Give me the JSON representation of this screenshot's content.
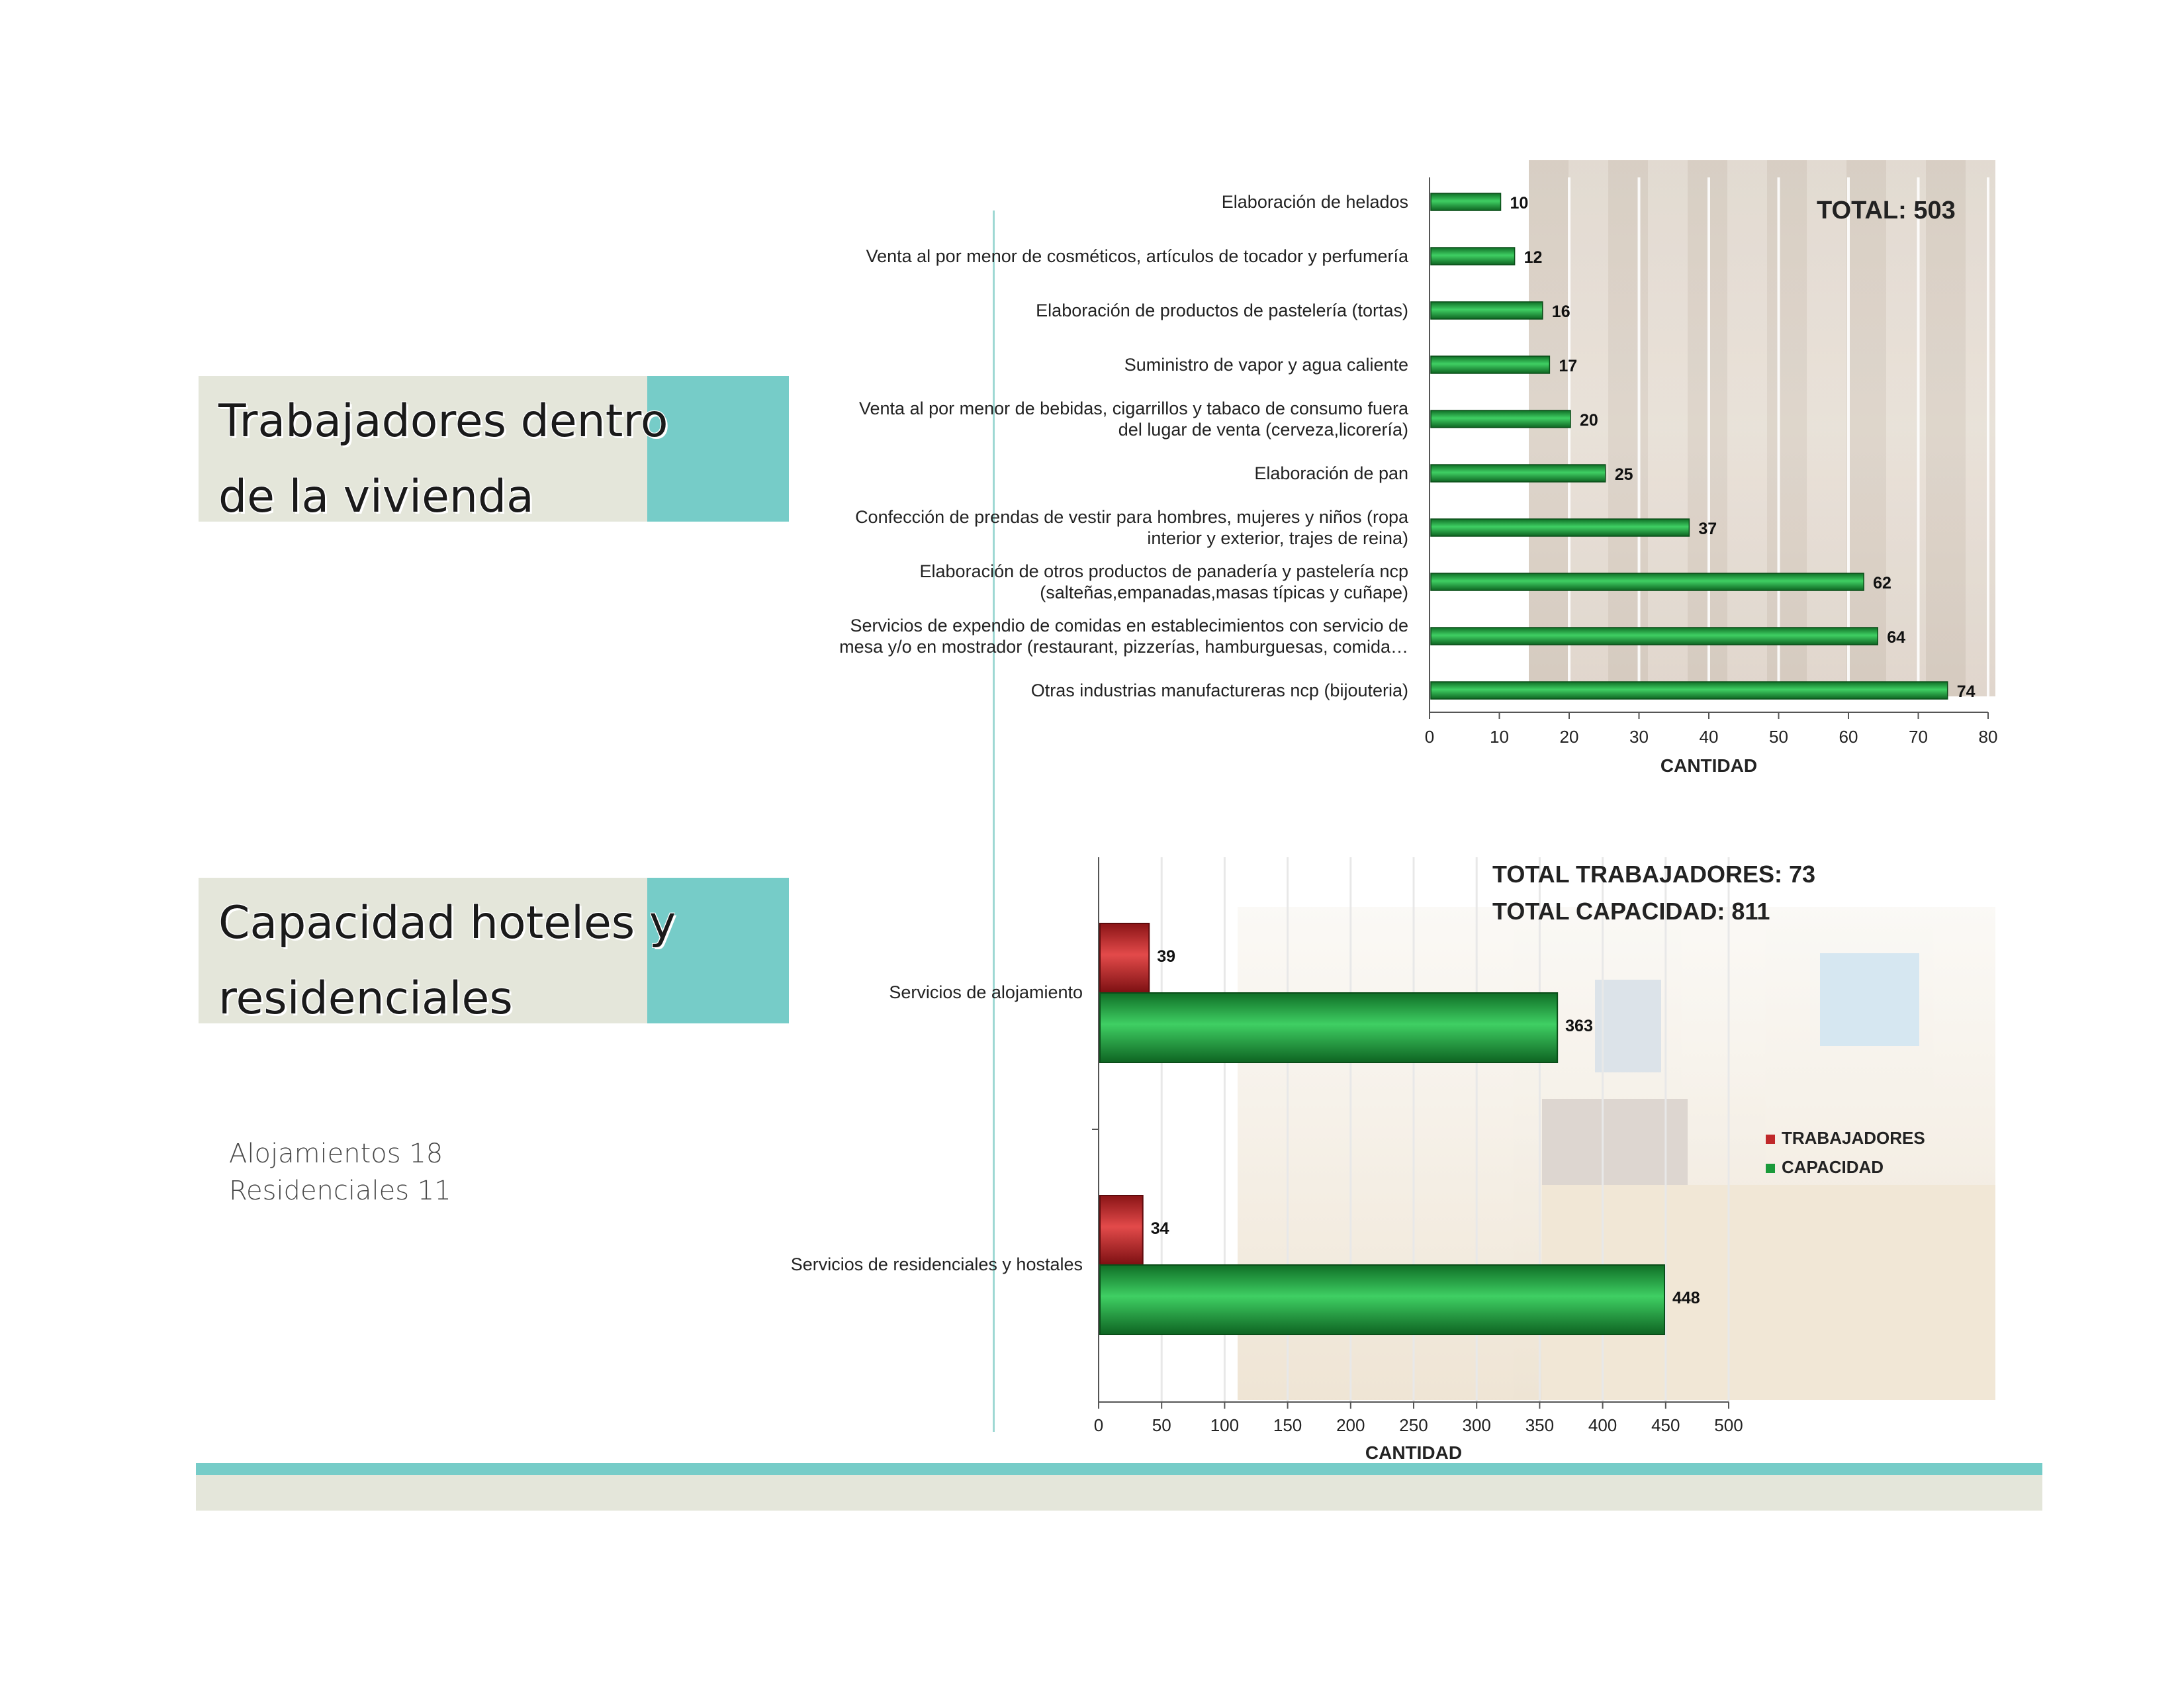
{
  "sections": {
    "section1_title": "Trabajadores dentro\nde la vivienda",
    "section2_title": "Capacidad hoteles y\nresidenciales",
    "notes": [
      "Alojamientos 18",
      "Residenciales 11"
    ]
  },
  "colors": {
    "green": "#1a9a3a",
    "red": "#c0282a",
    "teal": "#76ccc8",
    "beige": "#e4e6da"
  },
  "chart_data": [
    {
      "type": "bar",
      "orientation": "horizontal",
      "categories": [
        "Elaboración de helados",
        "Venta al por menor de cosméticos, artículos de tocador y perfumería",
        "Elaboración de productos de pastelería (tortas)",
        "Suministro de vapor y agua caliente",
        "Venta al por menor de bebidas, cigarrillos y  tabaco de consumo fuera del lugar de venta (cerveza,licorería)",
        "Elaboración de pan",
        "Confección de prendas de vestir para hombres, mujeres y niños (ropa interior y exterior, trajes de reina)",
        "Elaboración de otros productos de panadería y pastelería ncp (salteñas,empanadas,masas típicas y cuñape)",
        "Servicios de expendio de comidas en establecimientos con servicio de mesa y/o en mostrador (restaurant, pizzerías, hamburguesas, comida…",
        "Otras industrias manufactureras ncp (bijouteria)"
      ],
      "category_lines": [
        [
          "Elaboración de helados"
        ],
        [
          "Venta al por menor de cosméticos, artículos de tocador y perfumería"
        ],
        [
          "Elaboración de productos de pastelería (tortas)"
        ],
        [
          "Suministro de vapor y agua caliente"
        ],
        [
          "Venta al por menor de bebidas, cigarrillos y  tabaco de consumo fuera",
          "del lugar de venta (cerveza,licorería)"
        ],
        [
          "Elaboración de pan"
        ],
        [
          "Confección de prendas de vestir para hombres, mujeres y niños (ropa",
          "interior y exterior, trajes de reina)"
        ],
        [
          "Elaboración de otros productos de panadería y pastelería ncp",
          "(salteñas,empanadas,masas típicas y cuñape)"
        ],
        [
          "Servicios de expendio de comidas en establecimientos con servicio de",
          "mesa y/o en mostrador (restaurant, pizzerías, hamburguesas, comida…"
        ],
        [
          "Otras industrias manufactureras ncp (bijouteria)"
        ]
      ],
      "values": [
        10,
        12,
        16,
        17,
        20,
        25,
        37,
        62,
        64,
        74
      ],
      "xlabel": "CANTIDAD",
      "xlim": [
        0,
        80
      ],
      "xticks": [
        0,
        10,
        20,
        30,
        40,
        50,
        60,
        70,
        80
      ],
      "annotation": "TOTAL: 503",
      "grid": "vertical"
    },
    {
      "type": "bar",
      "orientation": "horizontal",
      "categories": [
        "Servicios de alojamiento",
        "Servicios de residenciales y hostales"
      ],
      "series": [
        {
          "name": "TRABAJADORES",
          "values": [
            39,
            34
          ],
          "color": "#c0282a"
        },
        {
          "name": "CAPACIDAD",
          "values": [
            363,
            448
          ],
          "color": "#1a9a3a"
        }
      ],
      "xlabel": "CANTIDAD",
      "xlim": [
        0,
        500
      ],
      "xticks": [
        0,
        50,
        100,
        150,
        200,
        250,
        300,
        350,
        400,
        450,
        500
      ],
      "annotations": [
        "TOTAL TRABAJADORES: 73",
        "TOTAL CAPACIDAD: 811"
      ],
      "legend": "right",
      "grid": "vertical"
    }
  ]
}
